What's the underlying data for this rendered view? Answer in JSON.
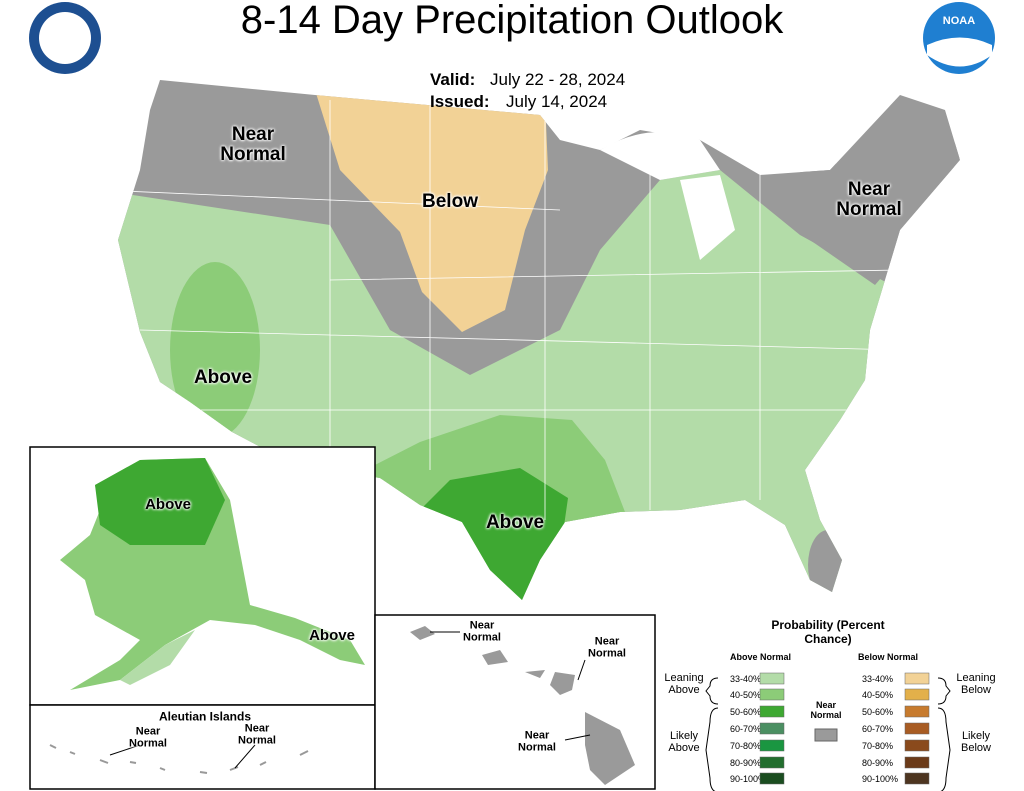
{
  "header": {
    "title": "8-14 Day Precipitation Outlook",
    "valid_label": "Valid:",
    "valid": "July 22 - 28, 2024",
    "issued_label": "Issued:",
    "issued": "July 14, 2024",
    "noaa": "NOAA"
  },
  "map": {
    "labels": [
      "Near Normal",
      "Below",
      "Near Normal",
      "Above",
      "Above",
      "Above",
      "Above",
      "Aleutian Islands",
      "Near Normal",
      "Near Normal",
      "Near Normal",
      "Near Normal",
      "Near Normal"
    ]
  },
  "legend": {
    "title": "Probability (Percent Chance)",
    "above_heading": "Above Normal",
    "below_heading": "Below Normal",
    "above": [
      {
        "label": "33-40%",
        "color": "#b3dca8"
      },
      {
        "label": "40-50%",
        "color": "#8ccc78"
      },
      {
        "label": "50-60%",
        "color": "#3ea832"
      },
      {
        "label": "60-70%",
        "color": "#4b8f62"
      },
      {
        "label": "70-80%",
        "color": "#1a9641"
      },
      {
        "label": "80-90%",
        "color": "#226e2e"
      },
      {
        "label": "90-100%",
        "color": "#1b4d20"
      }
    ],
    "below": [
      {
        "label": "33-40%",
        "color": "#f2d296"
      },
      {
        "label": "40-50%",
        "color": "#e3b04a"
      },
      {
        "label": "50-60%",
        "color": "#c77b2e"
      },
      {
        "label": "60-70%",
        "color": "#a85c23"
      },
      {
        "label": "70-80%",
        "color": "#8a4a1c"
      },
      {
        "label": "80-90%",
        "color": "#6b3a18"
      },
      {
        "label": "90-100%",
        "color": "#4d3520"
      }
    ],
    "near_normal": {
      "label": "Near Normal",
      "color": "#9a9a9a"
    },
    "leaning_above": "Leaning Above",
    "likely_above": "Likely Above",
    "leaning_below": "Leaning Below",
    "likely_below": "Likely Below"
  }
}
